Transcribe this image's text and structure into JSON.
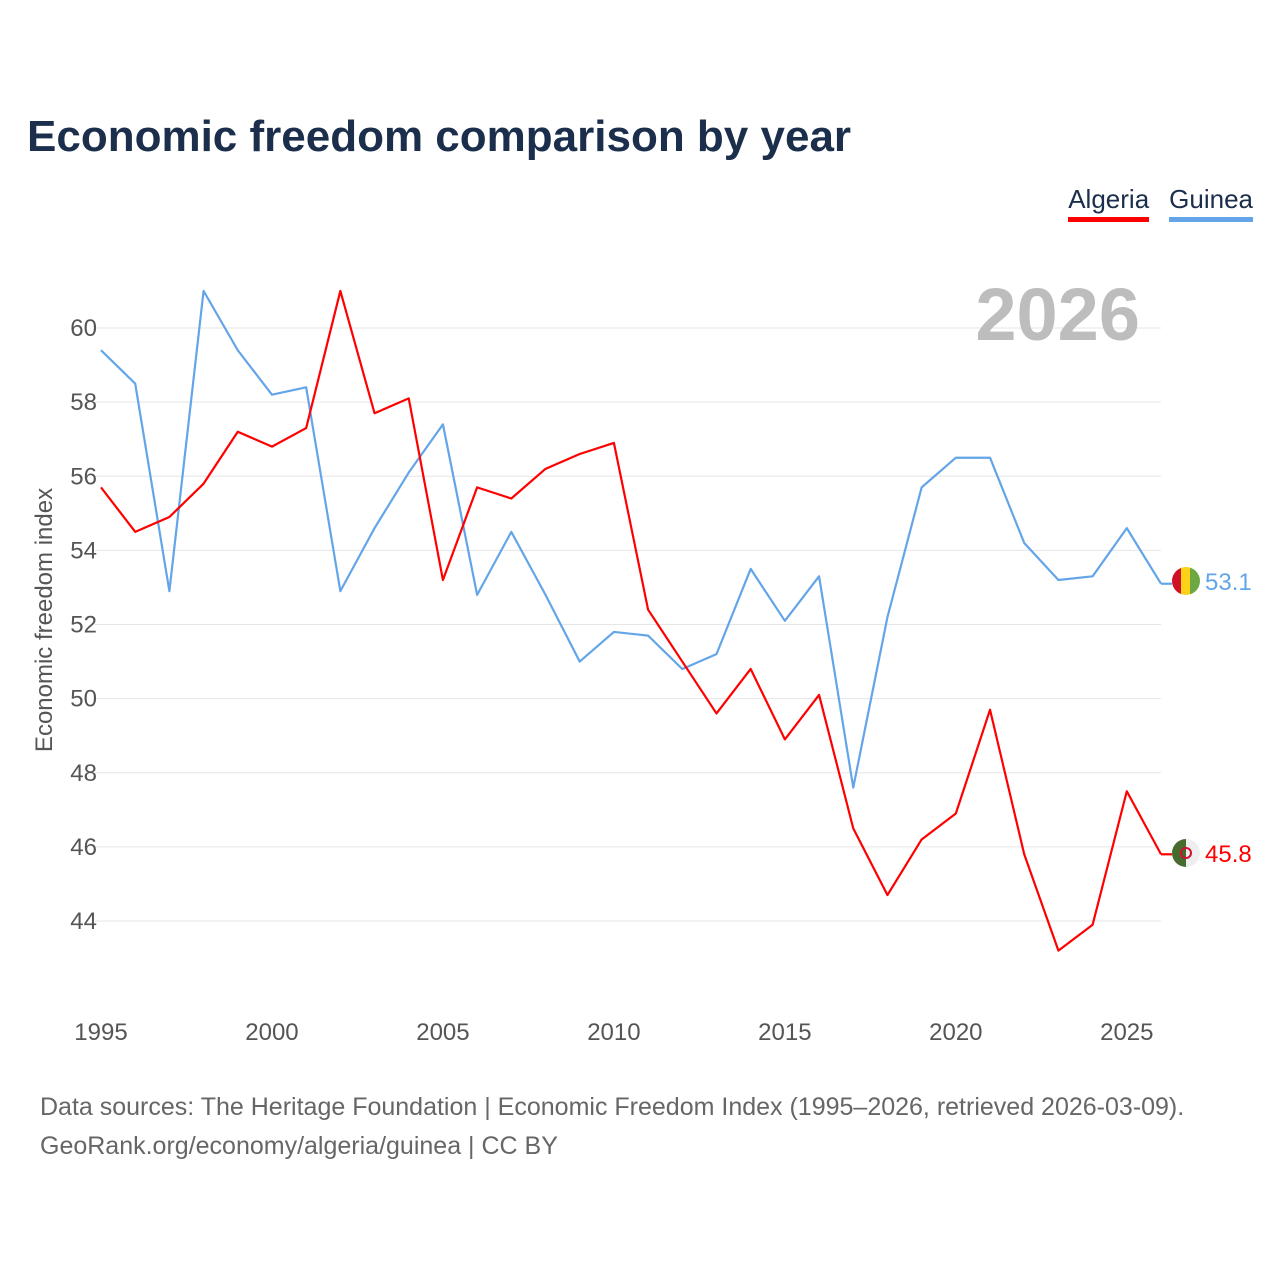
{
  "chart_data": {
    "type": "line",
    "title": "Economic freedom comparison by year",
    "xlabel": "",
    "ylabel": "Economic freedom index",
    "xlim": [
      1995,
      2026
    ],
    "ylim": [
      42,
      62
    ],
    "grid": true,
    "legend_position": "top-right",
    "watermark_year": "2026",
    "x_ticks": [
      1995,
      2000,
      2005,
      2010,
      2015,
      2020,
      2025
    ],
    "y_ticks": [
      44,
      46,
      48,
      50,
      52,
      54,
      56,
      58,
      60
    ],
    "x": [
      1995,
      1996,
      1997,
      1998,
      1999,
      2000,
      2001,
      2002,
      2003,
      2004,
      2005,
      2006,
      2007,
      2008,
      2009,
      2010,
      2011,
      2012,
      2013,
      2014,
      2015,
      2016,
      2017,
      2018,
      2019,
      2020,
      2021,
      2022,
      2023,
      2024,
      2025,
      2026
    ],
    "series": [
      {
        "name": "Algeria",
        "color": "#ff0000",
        "end_label": "45.8",
        "values": [
          55.7,
          54.5,
          54.9,
          55.8,
          57.2,
          56.8,
          57.3,
          61.0,
          57.7,
          58.1,
          53.2,
          55.7,
          55.4,
          56.2,
          56.6,
          56.9,
          52.4,
          51.0,
          49.6,
          50.8,
          48.9,
          50.1,
          46.5,
          44.7,
          46.2,
          46.9,
          49.7,
          45.8,
          43.2,
          43.9,
          47.5,
          45.8
        ]
      },
      {
        "name": "Guinea",
        "color": "#63a5e8",
        "end_label": "53.1",
        "values": [
          59.4,
          58.5,
          52.9,
          61.0,
          59.4,
          58.2,
          58.4,
          52.9,
          54.6,
          56.1,
          57.4,
          52.8,
          54.5,
          52.8,
          51.0,
          51.8,
          51.7,
          50.8,
          51.2,
          53.5,
          52.1,
          53.3,
          47.6,
          52.2,
          55.7,
          56.5,
          56.5,
          54.2,
          53.2,
          53.3,
          54.6,
          53.1
        ]
      }
    ]
  },
  "footer": {
    "line1": "Data sources: The Heritage Foundation | Economic Freedom Index (1995–2026, retrieved 2026-03-09).",
    "line2": "GeoRank.org/economy/algeria/guinea | CC BY"
  }
}
